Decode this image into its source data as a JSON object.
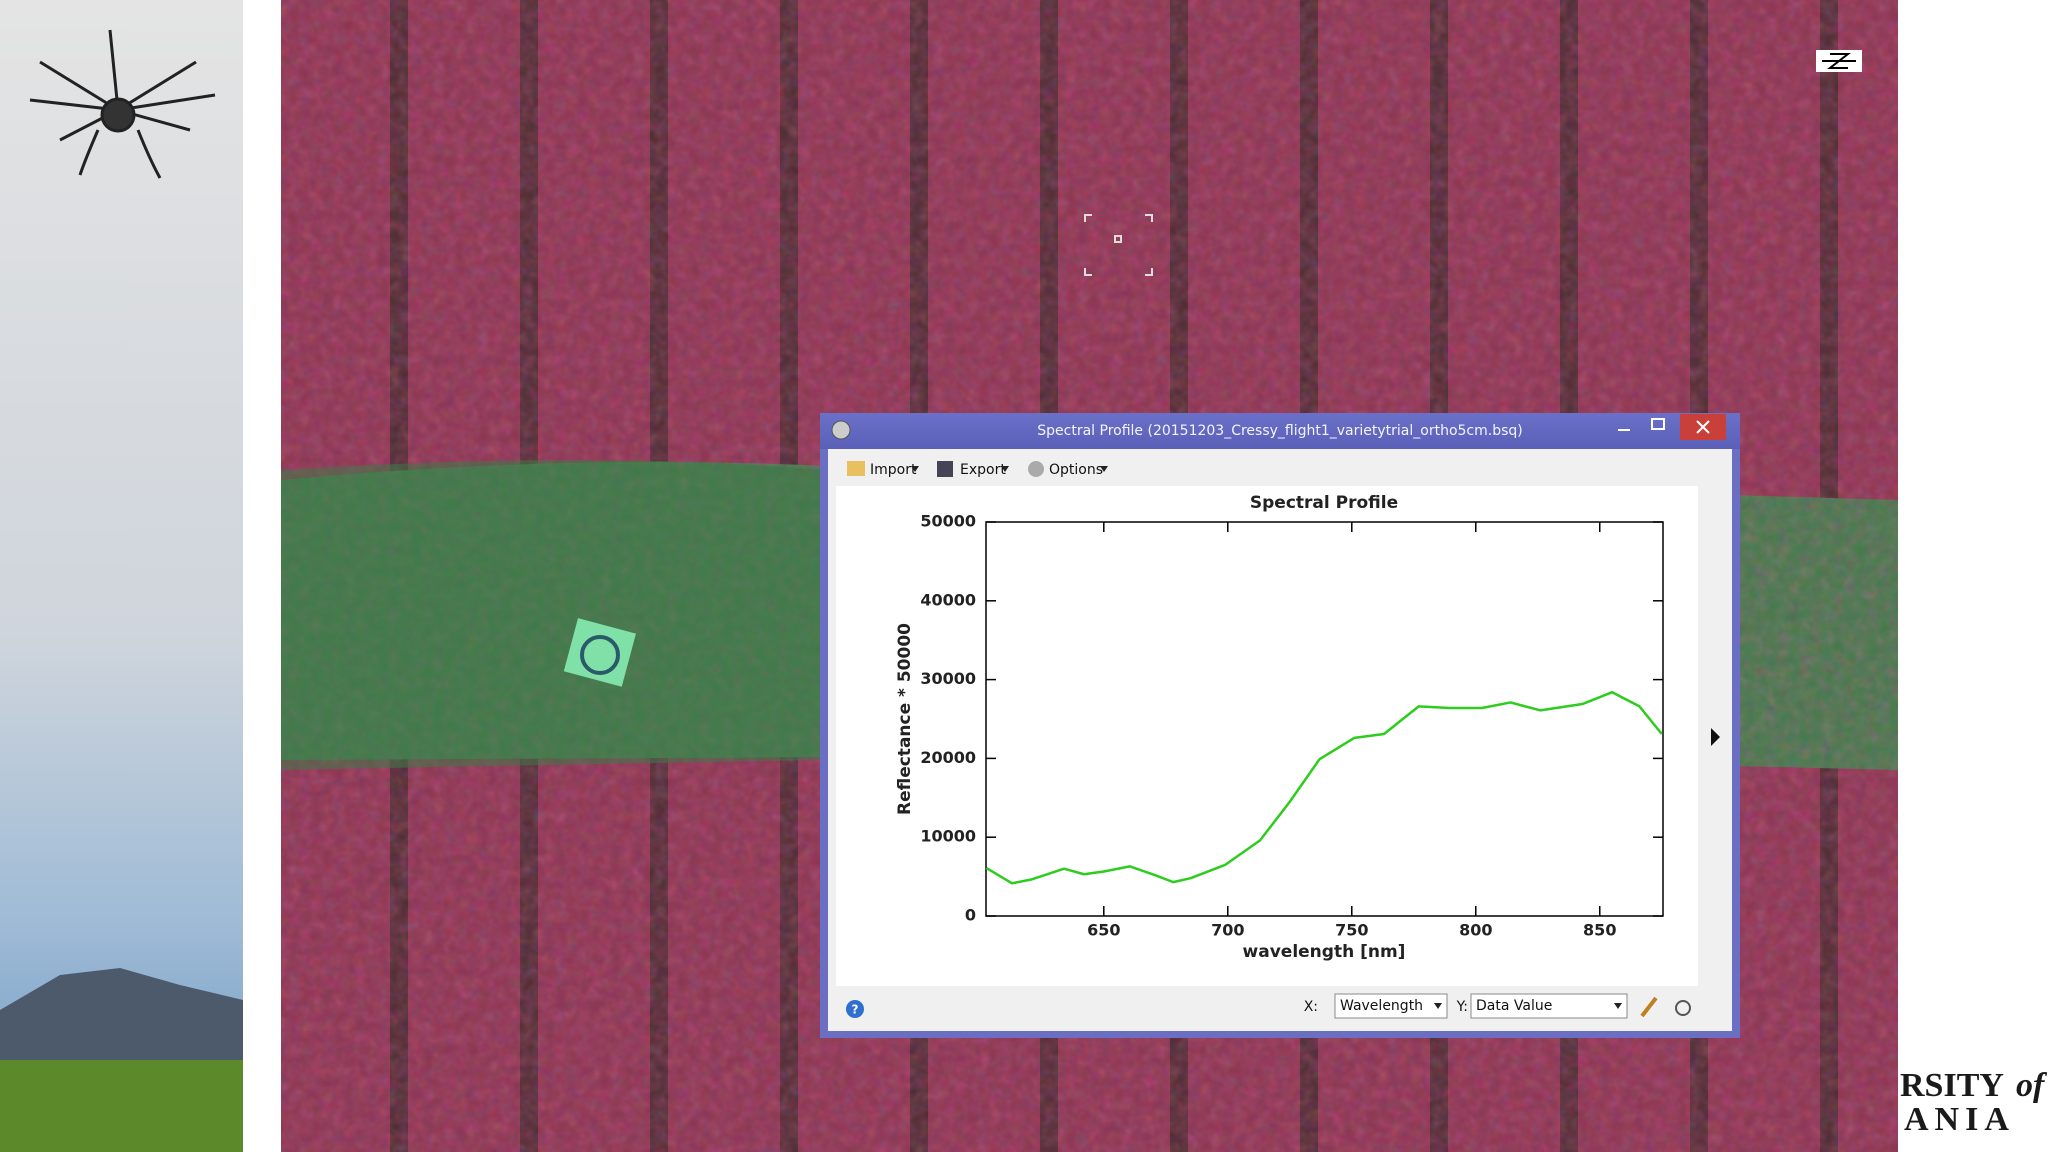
{
  "window": {
    "title": "Spectral Profile (20151203_Cressy_flight1_varietytrial_ortho5cm.bsq)",
    "toolbar": [
      "Import",
      "Export",
      "Options"
    ],
    "footer": {
      "x_label": "X:",
      "x_value": "Wavelength",
      "y_label": "Y:",
      "y_value": "Data Value"
    }
  },
  "chart_data": {
    "type": "line",
    "title": "Spectral Profile",
    "x_label": "wavelength [nm]",
    "y_label": "Reflectance * 50000",
    "x": [
      602.6,
      613,
      621,
      634,
      642,
      650,
      660.5,
      671,
      678,
      685,
      699,
      713,
      725,
      737,
      751,
      763,
      777,
      789.5,
      802.5,
      814,
      826,
      843,
      855,
      866,
      875
    ],
    "values": [
      6100,
      4150,
      4650,
      6000,
      5300,
      5650,
      6300,
      5150,
      4300,
      4800,
      6500,
      9600,
      14500,
      19900,
      22600,
      23100,
      26600,
      26400,
      26400,
      27100,
      26100,
      26900,
      28400,
      26600,
      23100
    ],
    "color": "#2ecc1e",
    "xlim": [
      602.5,
      875.5
    ],
    "ylim": [
      0,
      50000
    ],
    "xticks": [
      650,
      700,
      750,
      800,
      850
    ],
    "yticks": [
      0,
      10000,
      20000,
      30000,
      40000,
      50000
    ]
  },
  "logo": {
    "lines": [
      "RSITY",
      "of",
      "ANIA"
    ]
  }
}
